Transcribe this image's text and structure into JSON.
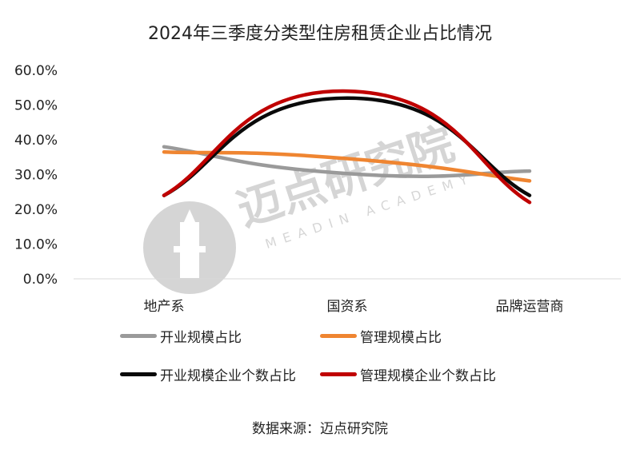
{
  "title": "2024年三季度分类型住房租赁企业占比情况",
  "source": "数据来源：迈点研究院",
  "watermark": {
    "text": "迈点研究院",
    "subtext": "MEADIN ACADEMY"
  },
  "chart_data": {
    "type": "line",
    "smooth": true,
    "categories": [
      "地产系",
      "国资系",
      "品牌运营商"
    ],
    "ylim": [
      0,
      60
    ],
    "ytick_labels": [
      "0.0%",
      "10.0%",
      "20.0%",
      "30.0%",
      "40.0%",
      "50.0%",
      "60.0%"
    ],
    "grid": "horizontal-baseline-only",
    "legend_position": "bottom",
    "series": [
      {
        "name": "开业规模占比",
        "color": "#9a9a9a",
        "values": [
          38.0,
          30.3,
          31.0
        ]
      },
      {
        "name": "管理规模占比",
        "color": "#ef8531",
        "values": [
          36.5,
          34.6,
          28.2
        ]
      },
      {
        "name": "开业规模企业个数占比",
        "color": "#0a0a0a",
        "values": [
          24.0,
          52.0,
          24.0
        ]
      },
      {
        "name": "管理规模企业个数占比",
        "color": "#c00000",
        "values": [
          24.0,
          54.0,
          22.0
        ]
      }
    ]
  }
}
